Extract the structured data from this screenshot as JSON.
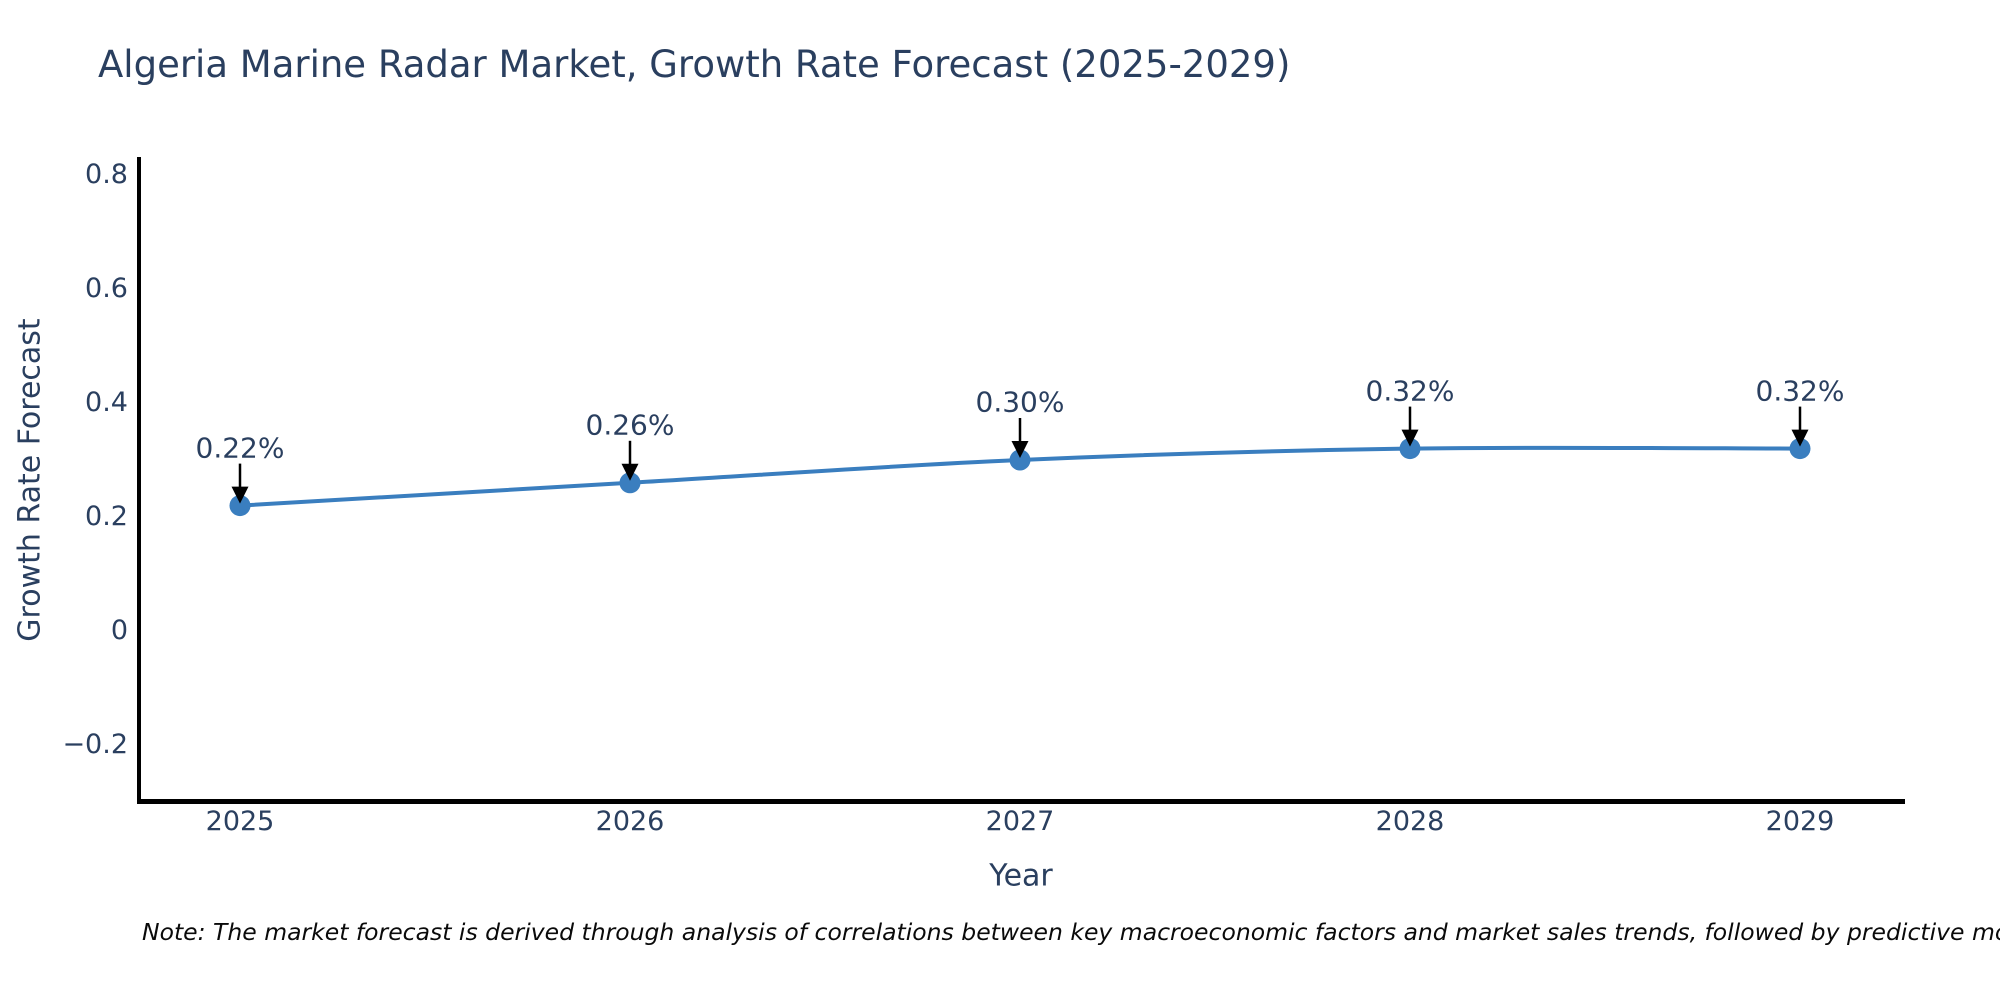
{
  "title": "Algeria Marine Radar Market, Growth Rate Forecast (2025-2029)",
  "note": "Note: The market forecast is derived through analysis of correlations between key macroeconomic factors and market sales trends, followed by predictive modeling to project future sales",
  "chart_data": {
    "type": "line",
    "x": [
      "2025",
      "2026",
      "2027",
      "2028",
      "2029"
    ],
    "series": [
      {
        "name": "Growth Rate Forecast",
        "values": [
          0.22,
          0.26,
          0.3,
          0.32,
          0.32
        ]
      }
    ],
    "point_labels": [
      "0.22%",
      "0.26%",
      "0.30%",
      "0.32%",
      "0.32%"
    ],
    "title": "Algeria Marine Radar Market, Growth Rate Forecast (2025-2029)",
    "xlabel": "Year",
    "ylabel": "Growth Rate Forecast",
    "yticks": [
      0.8,
      0.6,
      0.4,
      0.2,
      0,
      -0.2
    ],
    "ytick_labels": [
      "0.8",
      "0.6",
      "0.4",
      "0.2",
      "0",
      "−0.2"
    ],
    "ylim": [
      -0.32,
      0.83
    ],
    "grid": false,
    "legend_position": "none",
    "colors": {
      "line": "#3a7ebf",
      "marker": "#3a7ebf",
      "axis": "#000000",
      "arrow": "#000000",
      "text": "#2a3f5f"
    }
  }
}
